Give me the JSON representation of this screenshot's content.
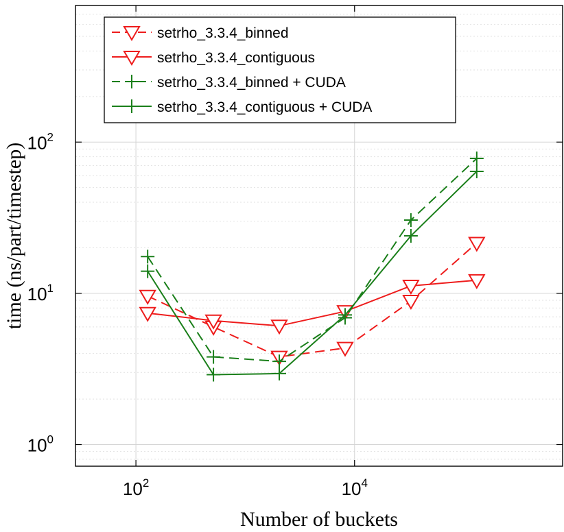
{
  "chart_data": {
    "type": "line",
    "title": "",
    "xlabel": "Number of buckets",
    "ylabel": "time (ns/part/timestep)",
    "x_scale": "log",
    "y_scale": "log",
    "xlim": [
      28,
      800000
    ],
    "ylim": [
      0.72,
      800
    ],
    "grid": true,
    "legend_position": "top-right",
    "x_ticks": [
      {
        "base": "10",
        "exp": "2",
        "value": 100
      },
      {
        "base": "10",
        "exp": "4",
        "value": 10000
      }
    ],
    "y_ticks": [
      {
        "base": "10",
        "exp": "0",
        "value": 1
      },
      {
        "base": "10",
        "exp": "1",
        "value": 10
      },
      {
        "base": "10",
        "exp": "2",
        "value": 100
      }
    ],
    "series": [
      {
        "name": "setrho_3.3.4_binned",
        "color": "#ee1c1c",
        "dashed": true,
        "marker": "triangle-down",
        "x": [
          128,
          512,
          2048,
          8192,
          32768,
          131072
        ],
        "y": [
          9.6,
          6.0,
          3.8,
          4.35,
          8.9,
          21.5
        ]
      },
      {
        "name": "setrho_3.3.4_contiguous",
        "color": "#ee1c1c",
        "dashed": false,
        "marker": "triangle-down",
        "x": [
          128,
          512,
          2048,
          8192,
          32768,
          131072
        ],
        "y": [
          7.4,
          6.6,
          6.1,
          7.6,
          11.2,
          12.2
        ]
      },
      {
        "name": "setrho_3.3.4_binned + CUDA",
        "color": "#1a7f1a",
        "dashed": true,
        "marker": "plus",
        "x": [
          128,
          512,
          2048,
          8192,
          32768,
          131072
        ],
        "y": [
          17.5,
          3.8,
          3.55,
          6.9,
          30.5,
          78
        ]
      },
      {
        "name": "setrho_3.3.4_contiguous + CUDA",
        "color": "#1a7f1a",
        "dashed": false,
        "marker": "plus",
        "x": [
          128,
          512,
          2048,
          8192,
          32768,
          131072
        ],
        "y": [
          14.0,
          2.9,
          2.95,
          7.2,
          24.0,
          64
        ]
      }
    ]
  }
}
